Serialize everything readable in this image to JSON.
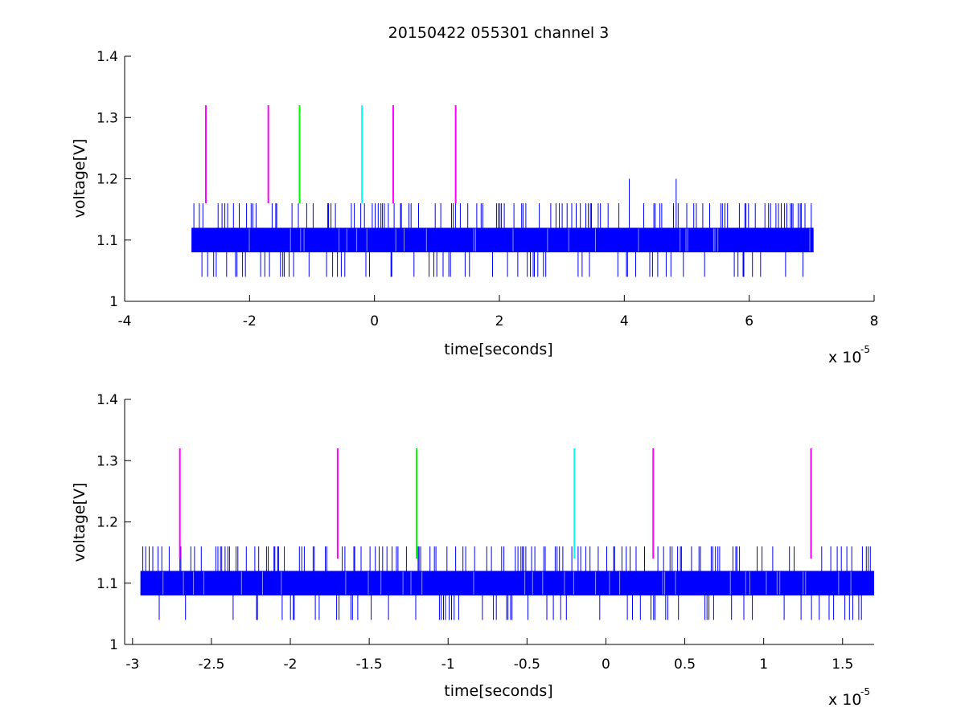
{
  "chart_data": [
    {
      "type": "line",
      "title": "20150422 055301 channel 3",
      "xlabel": "time[seconds]",
      "ylabel": "voltage[V]",
      "x_exponent_label": "x 10",
      "x_exponent": "-5",
      "xlim": [
        -4,
        8
      ],
      "ylim": [
        1,
        1.4
      ],
      "x_ticks": [
        -4,
        -2,
        0,
        2,
        4,
        6,
        8
      ],
      "x_tick_labels": [
        "-4",
        "-2",
        "0",
        "2",
        "4",
        "6",
        "8"
      ],
      "y_ticks": [
        1,
        1.1,
        1.2,
        1.3,
        1.4
      ],
      "y_tick_labels": [
        "1",
        "1.1",
        "1.2",
        "1.3",
        "1.4"
      ],
      "grid": false,
      "signal": {
        "color": "#0000ff",
        "x_start": -2.93,
        "x_end": 7.03,
        "band_low": 1.08,
        "band_high": 1.12,
        "spike_high": 1.16,
        "spike_low": 1.04,
        "tall_spikes": [
          {
            "x": 4.08,
            "y": 1.2
          },
          {
            "x": 4.83,
            "y": 1.2
          }
        ],
        "seed": 7
      },
      "markers": [
        {
          "x": -2.7,
          "color": "#ff00ff"
        },
        {
          "x": -1.7,
          "color": "#ff00ff"
        },
        {
          "x": -1.2,
          "color": "#00ff00"
        },
        {
          "x": -0.2,
          "color": "#00ffff"
        },
        {
          "x": 0.3,
          "color": "#ff00ff"
        },
        {
          "x": 1.3,
          "color": "#ff00ff"
        }
      ],
      "marker_ymin": 1.16,
      "marker_ymax": 1.32
    },
    {
      "type": "line",
      "title": "",
      "xlabel": "time[seconds]",
      "ylabel": "voltage[V]",
      "x_exponent_label": "x 10",
      "x_exponent": "-5",
      "xlim": [
        -3.05,
        1.7
      ],
      "ylim": [
        1,
        1.4
      ],
      "x_ticks": [
        -3,
        -2.5,
        -2,
        -1.5,
        -1,
        -0.5,
        0,
        0.5,
        1,
        1.5
      ],
      "x_tick_labels": [
        "-3",
        "-2.5",
        "-2",
        "-1.5",
        "-1",
        "-0.5",
        "0",
        "0.5",
        "1",
        "1.5"
      ],
      "y_ticks": [
        1,
        1.1,
        1.2,
        1.3,
        1.4
      ],
      "y_tick_labels": [
        "1",
        "1.1",
        "1.2",
        "1.3",
        "1.4"
      ],
      "grid": false,
      "signal": {
        "color": "#0000ff",
        "x_start": -2.95,
        "x_end": 1.7,
        "band_low": 1.08,
        "band_high": 1.12,
        "spike_high": 1.16,
        "spike_low": 1.04,
        "tall_spikes": [],
        "seed": 13
      },
      "markers": [
        {
          "x": -2.7,
          "color": "#ff00ff"
        },
        {
          "x": -1.7,
          "color": "#ff00ff"
        },
        {
          "x": -1.2,
          "color": "#00ff00"
        },
        {
          "x": -0.2,
          "color": "#00ffff"
        },
        {
          "x": 0.3,
          "color": "#ff00ff"
        },
        {
          "x": 1.3,
          "color": "#ff00ff"
        }
      ],
      "marker_ymin": 1.14,
      "marker_ymax": 1.32
    }
  ]
}
